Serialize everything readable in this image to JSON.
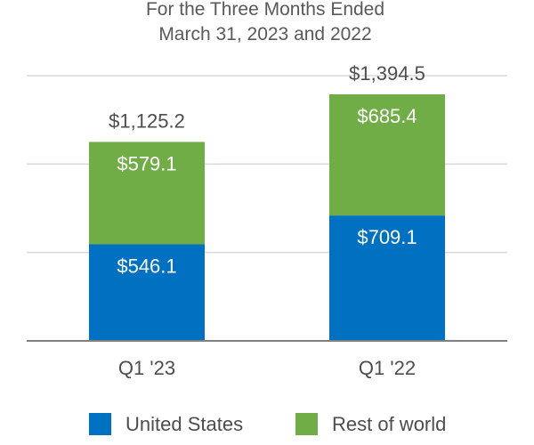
{
  "chart_data": {
    "type": "bar",
    "stacked": true,
    "title": [
      "For the Three Months Ended",
      "March 31, 2023 and 2022"
    ],
    "categories": [
      "Q1 '23",
      "Q1 '22"
    ],
    "series": [
      {
        "name": "United States",
        "color": "#0070c0",
        "values": [
          546.1,
          709.1
        ],
        "labels": [
          "$546.1",
          "$709.1"
        ]
      },
      {
        "name": "Rest of world",
        "color": "#70ad47",
        "values": [
          579.1,
          685.4
        ],
        "labels": [
          "$579.1",
          "$685.4"
        ]
      }
    ],
    "totals": [
      1125.2,
      1394.5
    ],
    "total_labels": [
      "$1,125.2",
      "$1,394.5"
    ],
    "ylim": [
      0,
      1500
    ],
    "grid": true,
    "legend_position": "bottom"
  }
}
